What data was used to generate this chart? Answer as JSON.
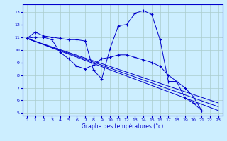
{
  "xlabel": "Graphe des températures (°c)",
  "background_color": "#cceeff",
  "line_color": "#0000cc",
  "grid_color": "#aacccc",
  "ylim": [
    4.8,
    13.6
  ],
  "xlim": [
    -0.5,
    23.5
  ],
  "yticks": [
    5,
    6,
    7,
    8,
    9,
    10,
    11,
    12,
    13
  ],
  "xticks": [
    0,
    1,
    2,
    3,
    4,
    5,
    6,
    7,
    8,
    9,
    10,
    11,
    12,
    13,
    14,
    15,
    16,
    17,
    18,
    19,
    20,
    21,
    22,
    23
  ],
  "series": [
    {
      "x": [
        0,
        1,
        2,
        3,
        4,
        5,
        6,
        7,
        8,
        9,
        10,
        11,
        12,
        13,
        14,
        15,
        16,
        17,
        18,
        19,
        20,
        21
      ],
      "y": [
        10.9,
        11.4,
        11.1,
        11.0,
        10.9,
        10.8,
        10.8,
        10.7,
        8.4,
        7.7,
        10.1,
        11.9,
        12.0,
        12.9,
        13.1,
        12.8,
        10.8,
        7.5,
        7.5,
        6.2,
        5.8,
        5.2
      ],
      "marker": true
    },
    {
      "x": [
        0,
        1,
        2,
        3,
        4,
        5,
        6,
        7,
        8,
        9,
        10,
        11,
        12,
        13,
        14,
        15,
        16,
        17,
        18,
        19,
        20,
        21
      ],
      "y": [
        10.9,
        11.0,
        11.0,
        10.8,
        9.8,
        9.3,
        8.7,
        8.5,
        8.8,
        9.3,
        9.4,
        9.6,
        9.6,
        9.4,
        9.2,
        9.0,
        8.7,
        8.0,
        7.5,
        7.0,
        6.3,
        5.2
      ],
      "marker": true
    },
    {
      "x": [
        0,
        23
      ],
      "y": [
        10.9,
        5.2
      ],
      "marker": false
    },
    {
      "x": [
        0,
        23
      ],
      "y": [
        10.9,
        5.5
      ],
      "marker": false
    },
    {
      "x": [
        0,
        23
      ],
      "y": [
        10.9,
        5.8
      ],
      "marker": false
    }
  ]
}
